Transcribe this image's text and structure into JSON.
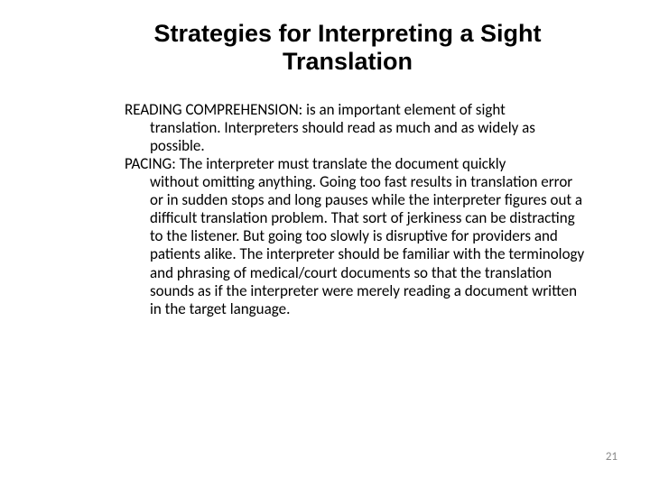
{
  "title": "Strategies for Interpreting a Sight Translation",
  "title_fontsize": 27,
  "title_color": "#000000",
  "body_fontsize": 17,
  "body_color": "#000000",
  "paragraphs": [
    {
      "lead": "READING COMPREHENSION: is an important element of sight",
      "rest": "translation. Interpreters should read as much and as widely as possible."
    },
    {
      "lead": "PACING: The interpreter must translate the document quickly",
      "rest": "without omitting anything. Going too fast results in translation error or in sudden stops and long pauses while the interpreter figures out a difficult translation problem. That sort of jerkiness can be distracting to the listener. But going too slowly is disruptive for providers and patients alike. The interpreter should be familiar with the terminology and phrasing of medical/court documents so that the translation sounds as if the interpreter were merely reading a document written in the target language."
    }
  ],
  "page_number": "21",
  "page_number_fontsize": 13,
  "page_number_color": "#8a8a8a",
  "background_color": "#ffffff"
}
